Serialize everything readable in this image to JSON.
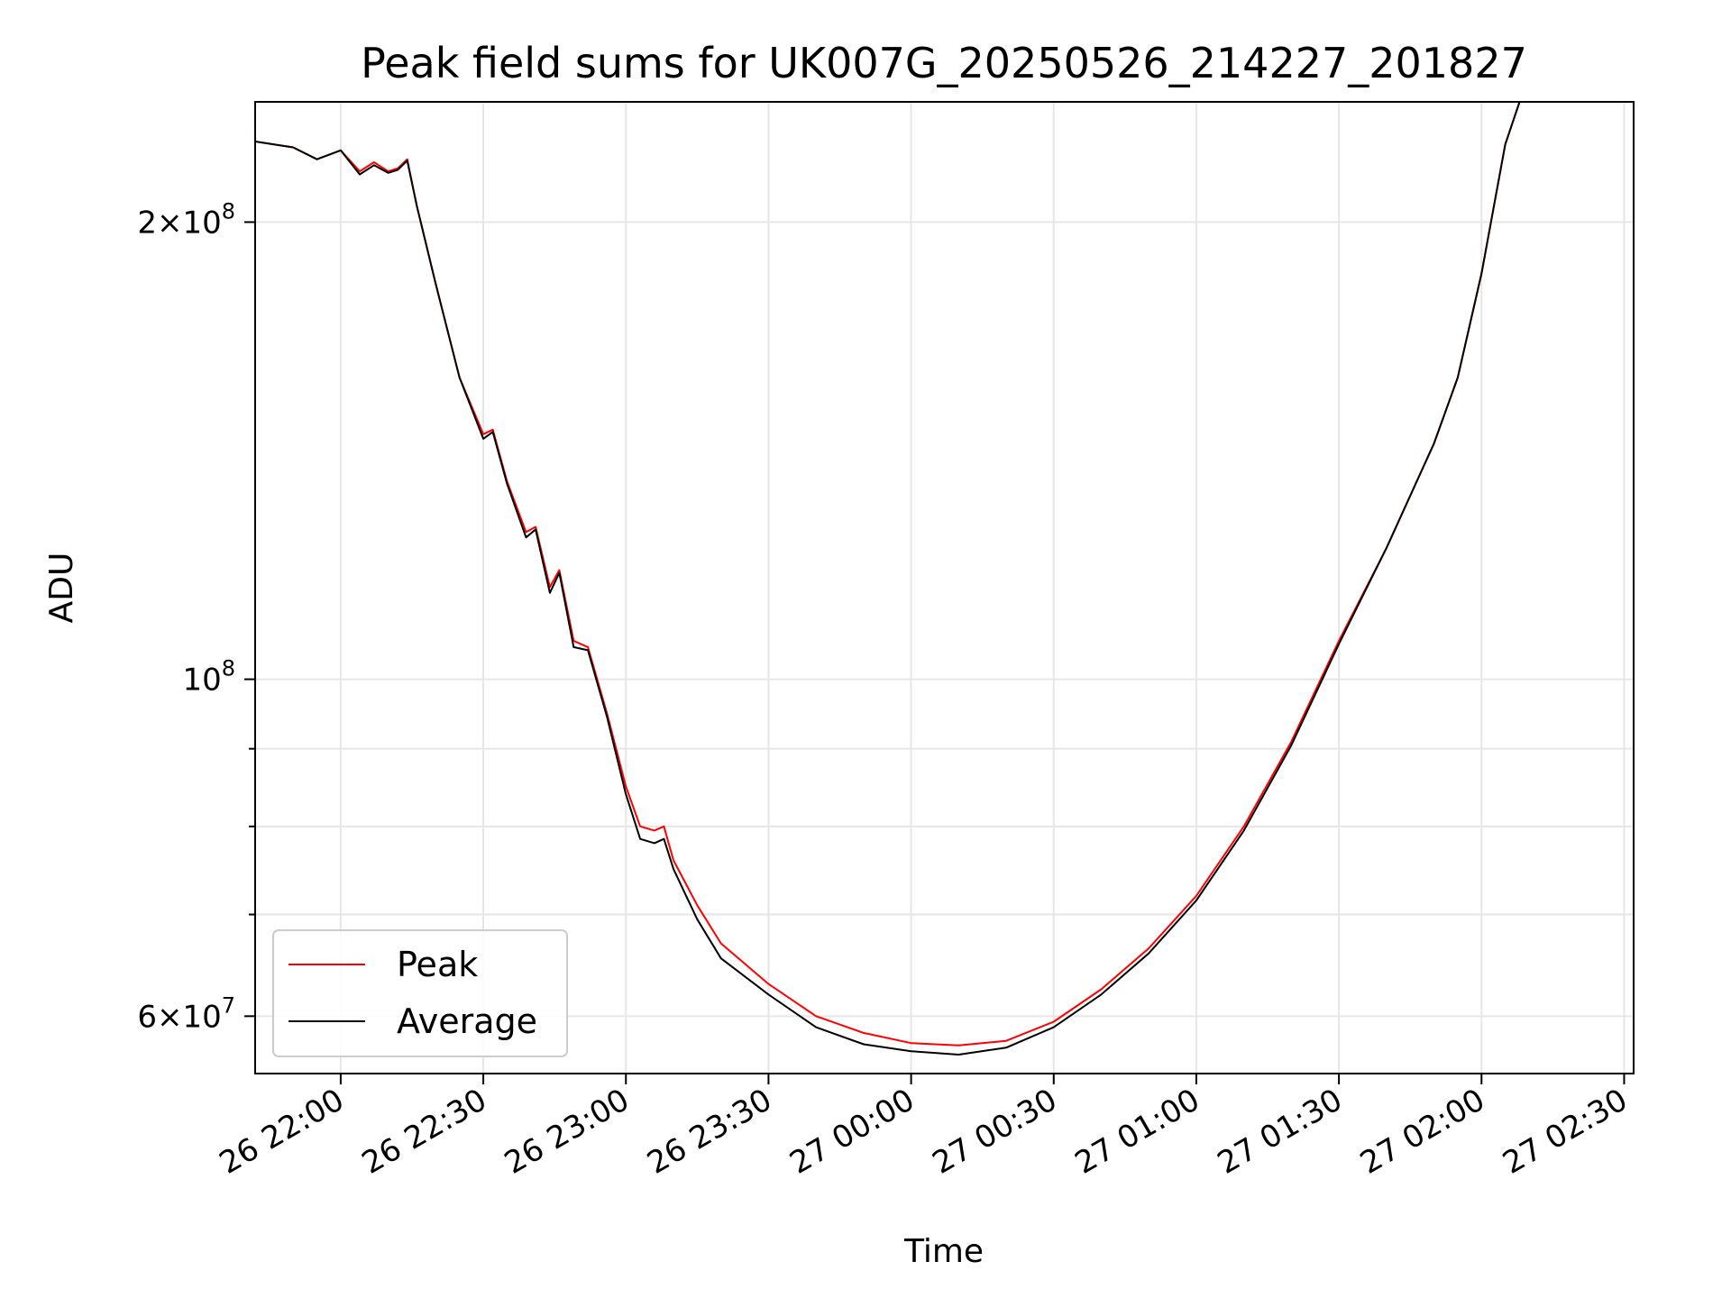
{
  "chart_data": {
    "type": "line",
    "title": "Peak field sums for UK007G_20250526_214227_201827",
    "xlabel": "Time",
    "ylabel": "ADU",
    "xscale": "time",
    "yscale": "log",
    "xlim": [
      "2025-05-26 21:42",
      "2025-05-27 02:32"
    ],
    "ylim": [
      55000000,
      240000000
    ],
    "grid": true,
    "legend": {
      "position": "lower-left"
    },
    "x_ticks": [
      {
        "value": "2025-05-26 22:00",
        "label": "26 22:00"
      },
      {
        "value": "2025-05-26 22:30",
        "label": "26 22:30"
      },
      {
        "value": "2025-05-26 23:00",
        "label": "26 23:00"
      },
      {
        "value": "2025-05-26 23:30",
        "label": "26 23:30"
      },
      {
        "value": "2025-05-27 00:00",
        "label": "27 00:00"
      },
      {
        "value": "2025-05-27 00:30",
        "label": "27 00:30"
      },
      {
        "value": "2025-05-27 01:00",
        "label": "27 01:00"
      },
      {
        "value": "2025-05-27 01:30",
        "label": "27 01:30"
      },
      {
        "value": "2025-05-27 02:00",
        "label": "27 02:00"
      },
      {
        "value": "2025-05-27 02:30",
        "label": "27 02:30"
      }
    ],
    "y_ticks_major": [
      {
        "value": 60000000,
        "mantissa": "6",
        "exponent": "7"
      },
      {
        "value": 100000000,
        "mantissa": "",
        "exponent": "8"
      },
      {
        "value": 200000000,
        "mantissa": "2",
        "exponent": "8"
      }
    ],
    "y_ticks_minor": [
      70000000,
      80000000,
      90000000
    ],
    "series": [
      {
        "name": "Peak",
        "color": "#ff0000",
        "x": [
          "2025-05-26 21:42",
          "2025-05-26 21:50",
          "2025-05-26 21:55",
          "2025-05-26 22:00",
          "2025-05-26 22:04",
          "2025-05-26 22:07",
          "2025-05-26 22:10",
          "2025-05-26 22:12",
          "2025-05-26 22:14",
          "2025-05-26 22:16",
          "2025-05-26 22:20",
          "2025-05-26 22:25",
          "2025-05-26 22:30",
          "2025-05-26 22:32",
          "2025-05-26 22:35",
          "2025-05-26 22:39",
          "2025-05-26 22:41",
          "2025-05-26 22:44",
          "2025-05-26 22:46",
          "2025-05-26 22:49",
          "2025-05-26 22:52",
          "2025-05-26 22:56",
          "2025-05-26 23:00",
          "2025-05-26 23:03",
          "2025-05-26 23:06",
          "2025-05-26 23:08",
          "2025-05-26 23:10",
          "2025-05-26 23:15",
          "2025-05-26 23:20",
          "2025-05-26 23:30",
          "2025-05-26 23:40",
          "2025-05-26 23:50",
          "2025-05-27 00:00",
          "2025-05-27 00:10",
          "2025-05-27 00:20",
          "2025-05-27 00:30",
          "2025-05-27 00:40",
          "2025-05-27 00:50",
          "2025-05-27 01:00",
          "2025-05-27 01:10",
          "2025-05-27 01:20",
          "2025-05-27 01:30",
          "2025-05-27 01:40",
          "2025-05-27 01:50",
          "2025-05-27 01:55",
          "2025-05-27 02:00",
          "2025-05-27 02:05",
          "2025-05-27 02:08"
        ],
        "values": [
          226000000,
          224000000,
          220000000,
          223000000,
          216000000,
          219000000,
          216000000,
          217000000,
          220000000,
          205000000,
          182000000,
          158000000,
          145000000,
          146000000,
          135000000,
          125000000,
          126000000,
          115000000,
          118000000,
          106000000,
          105000000,
          95000000,
          85000000,
          80000000,
          79500000,
          80000000,
          76000000,
          71000000,
          67000000,
          63000000,
          60000000,
          58500000,
          57600000,
          57400000,
          57800000,
          59500000,
          62500000,
          66500000,
          72000000,
          80000000,
          91000000,
          106000000,
          122000000,
          143000000,
          158000000,
          185000000,
          225000000,
          240000000
        ]
      },
      {
        "name": "Average",
        "color": "#000000",
        "x": [
          "2025-05-26 21:42",
          "2025-05-26 21:50",
          "2025-05-26 21:55",
          "2025-05-26 22:00",
          "2025-05-26 22:04",
          "2025-05-26 22:07",
          "2025-05-26 22:10",
          "2025-05-26 22:12",
          "2025-05-26 22:14",
          "2025-05-26 22:16",
          "2025-05-26 22:20",
          "2025-05-26 22:25",
          "2025-05-26 22:30",
          "2025-05-26 22:32",
          "2025-05-26 22:35",
          "2025-05-26 22:39",
          "2025-05-26 22:41",
          "2025-05-26 22:44",
          "2025-05-26 22:46",
          "2025-05-26 22:49",
          "2025-05-26 22:52",
          "2025-05-26 22:56",
          "2025-05-26 23:00",
          "2025-05-26 23:03",
          "2025-05-26 23:06",
          "2025-05-26 23:08",
          "2025-05-26 23:10",
          "2025-05-26 23:15",
          "2025-05-26 23:20",
          "2025-05-26 23:30",
          "2025-05-26 23:40",
          "2025-05-26 23:50",
          "2025-05-27 00:00",
          "2025-05-27 00:10",
          "2025-05-27 00:20",
          "2025-05-27 00:30",
          "2025-05-27 00:40",
          "2025-05-27 00:50",
          "2025-05-27 01:00",
          "2025-05-27 01:10",
          "2025-05-27 01:20",
          "2025-05-27 01:30",
          "2025-05-27 01:40",
          "2025-05-27 01:50",
          "2025-05-27 01:55",
          "2025-05-27 02:00",
          "2025-05-27 02:05",
          "2025-05-27 02:08"
        ],
        "values": [
          226000000,
          224000000,
          220000000,
          223000000,
          215000000,
          218000000,
          215500000,
          216500000,
          219500000,
          205000000,
          182000000,
          158000000,
          144000000,
          145500000,
          134500000,
          124000000,
          125500000,
          114000000,
          117500000,
          105000000,
          104500000,
          94500000,
          84000000,
          78500000,
          78000000,
          78500000,
          75000000,
          69500000,
          65500000,
          62000000,
          59000000,
          57500000,
          56900000,
          56600000,
          57200000,
          59000000,
          62000000,
          66000000,
          71500000,
          79500000,
          90500000,
          105500000,
          122000000,
          143000000,
          158000000,
          185000000,
          225000000,
          240000000
        ]
      }
    ]
  }
}
